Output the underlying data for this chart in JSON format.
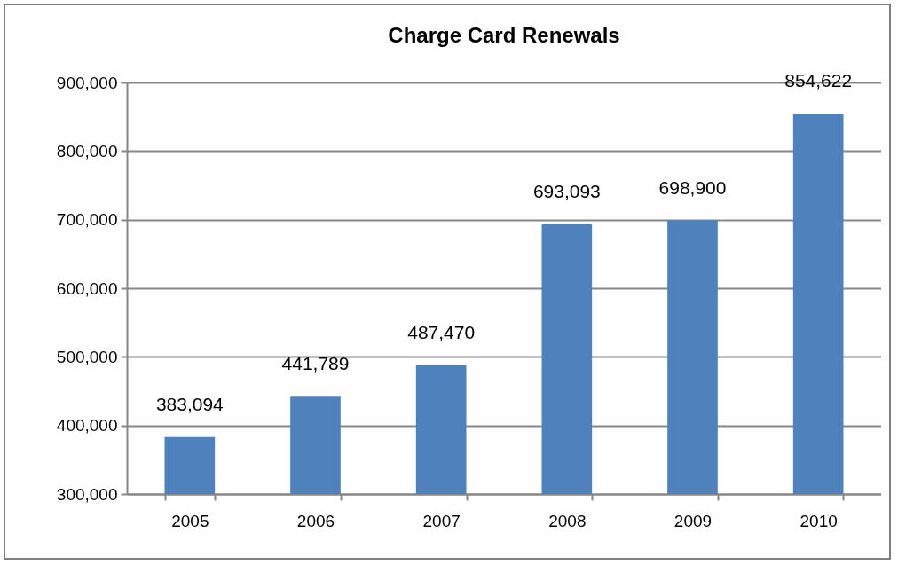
{
  "chart_data": {
    "type": "bar",
    "title": "Charge Card Renewals",
    "categories": [
      "2005",
      "2006",
      "2007",
      "2008",
      "2009",
      "2010"
    ],
    "values": [
      383094,
      441789,
      487470,
      693093,
      698900,
      854622
    ],
    "value_labels": [
      "383,094",
      "441,789",
      "487,470",
      "693,093",
      "698,900",
      "854,622"
    ],
    "color": "#4f81bd",
    "ylim": [
      300000,
      900000
    ],
    "yticks": [
      {
        "value": 300000,
        "label": "300,000"
      },
      {
        "value": 400000,
        "label": "400,000"
      },
      {
        "value": 500000,
        "label": "500,000"
      },
      {
        "value": 600000,
        "label": "600,000"
      },
      {
        "value": 700000,
        "label": "700,000"
      },
      {
        "value": 800000,
        "label": "800,000"
      },
      {
        "value": 900000,
        "label": "900,000"
      }
    ],
    "grid": "y"
  }
}
